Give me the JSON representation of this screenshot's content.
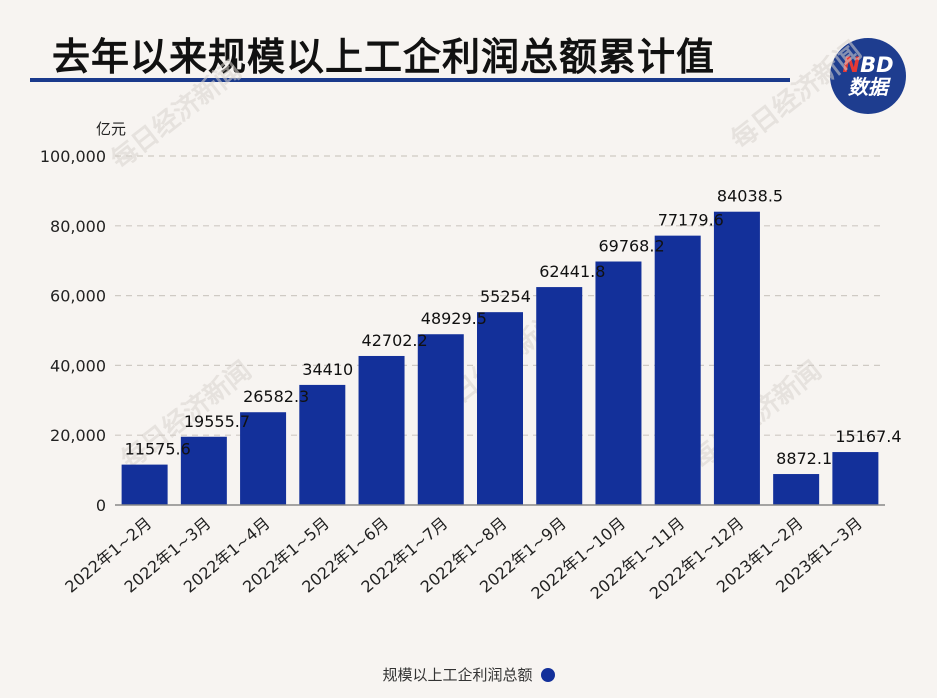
{
  "header": {
    "title": "去年以来规模以上工企利润总额累计值",
    "badge_line1_n": "N",
    "badge_line1_rest": "BD",
    "badge_line2": "数据"
  },
  "watermark": "每日经济新闻",
  "colors": {
    "bar": "#13309a",
    "title_rule": "#1a3a8c",
    "badge": "#1e3d8f",
    "badge_accent": "#e53935"
  },
  "chart_data": {
    "type": "bar",
    "unit_label": "亿元",
    "categories": [
      "2022年1~2月",
      "2022年1~3月",
      "2022年1~4月",
      "2022年1~5月",
      "2022年1~6月",
      "2022年1~7月",
      "2022年1~8月",
      "2022年1~9月",
      "2022年1~10月",
      "2022年1~11月",
      "2022年1~12月",
      "2023年1~2月",
      "2023年1~3月"
    ],
    "values": [
      11575.6,
      19555.7,
      26582.3,
      34410,
      42702.2,
      48929.5,
      55254,
      62441.8,
      69768.2,
      77179.6,
      84038.5,
      8872.1,
      15167.4
    ],
    "value_labels": [
      "11575.6",
      "19555.7",
      "26582.3",
      "34410",
      "42702.2",
      "48929.5",
      "55254",
      "62441.8",
      "69768.2",
      "77179.6",
      "84038.5",
      "8872.1",
      "15167.4"
    ],
    "yticks": [
      0,
      20000,
      40000,
      60000,
      80000,
      100000
    ],
    "ytick_labels": [
      "0",
      "20,000",
      "40,000",
      "60,000",
      "80,000",
      "100,000"
    ],
    "ylim": [
      0,
      100000
    ],
    "grid": true,
    "legend": {
      "label": "规模以上工企利润总额",
      "placement": "bottom-center"
    }
  }
}
